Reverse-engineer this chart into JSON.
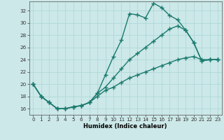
{
  "xlabel": "Humidex (Indice chaleur)",
  "bg_color": "#cce8e8",
  "grid_color": "#b0d8d8",
  "line_color": "#1a7a6e",
  "xlim": [
    -0.5,
    23.5
  ],
  "ylim": [
    15.0,
    33.5
  ],
  "yticks": [
    16,
    18,
    20,
    22,
    24,
    26,
    28,
    30,
    32
  ],
  "xticks": [
    0,
    1,
    2,
    3,
    4,
    5,
    6,
    7,
    8,
    9,
    10,
    11,
    12,
    13,
    14,
    15,
    16,
    17,
    18,
    19,
    20,
    21,
    22,
    23
  ],
  "line1_x": [
    0,
    1,
    2,
    3,
    4,
    5,
    6,
    7,
    8,
    9,
    10,
    11,
    12,
    13,
    14,
    15,
    16,
    17,
    18,
    19,
    20,
    21,
    22,
    23
  ],
  "line1_y": [
    20.0,
    18.0,
    17.0,
    16.0,
    16.0,
    16.3,
    16.5,
    17.0,
    18.5,
    21.5,
    24.5,
    27.2,
    31.5,
    31.3,
    30.8,
    33.2,
    32.5,
    31.2,
    30.5,
    28.8,
    26.8,
    23.8,
    24.0,
    24.0
  ],
  "line2_x": [
    0,
    1,
    2,
    3,
    4,
    5,
    6,
    7,
    8,
    9,
    10,
    11,
    12,
    13,
    14,
    15,
    16,
    17,
    18,
    19,
    20,
    21,
    22,
    23
  ],
  "line2_y": [
    20.0,
    18.0,
    17.0,
    16.0,
    16.0,
    16.3,
    16.5,
    17.0,
    18.5,
    19.5,
    21.0,
    22.5,
    24.0,
    25.0,
    26.0,
    27.0,
    28.0,
    29.0,
    29.5,
    28.8,
    26.8,
    23.8,
    24.0,
    24.0
  ],
  "line3_x": [
    0,
    1,
    2,
    3,
    4,
    5,
    6,
    7,
    8,
    9,
    10,
    11,
    12,
    13,
    14,
    15,
    16,
    17,
    18,
    19,
    20,
    21,
    22,
    23
  ],
  "line3_y": [
    20.0,
    18.0,
    17.0,
    16.0,
    16.0,
    16.3,
    16.5,
    17.0,
    18.0,
    19.0,
    19.5,
    20.3,
    21.0,
    21.5,
    22.0,
    22.5,
    23.0,
    23.5,
    24.0,
    24.3,
    24.5,
    24.0,
    24.0,
    24.0
  ],
  "marker": "+",
  "markersize": 4,
  "linewidth": 1.0,
  "xlabel_fontsize": 6.0,
  "tick_fontsize": 5.2
}
